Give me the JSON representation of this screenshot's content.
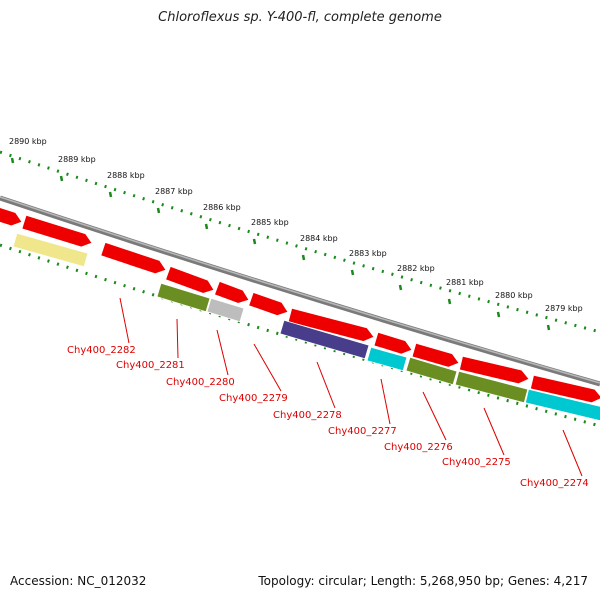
{
  "header": {
    "title": "Chloroflexus sp. Y-400-fl, complete genome"
  },
  "footer": {
    "accession": "Accession: NC_012032",
    "summary": "Topology: circular; Length: 5,268,950 bp; Genes: 4,217"
  },
  "scale": {
    "kbp_labels": [
      "2890 kbp",
      "2889 kbp",
      "2888 kbp",
      "2887 kbp",
      "2886 kbp",
      "2885 kbp",
      "2884 kbp",
      "2883 kbp",
      "2882 kbp",
      "2881 kbp",
      "2880 kbp",
      "2879 kbp"
    ]
  },
  "colors": {
    "backbone": "#7a7a7a",
    "gene_red": "#ee0000",
    "label_red": "#dd0000",
    "tick_green": "#1a8a1a",
    "yellow": "#f0e68c",
    "olive": "#6b8e23",
    "gray": "#bdbdbd",
    "purple": "#483d8b",
    "cyan": "#00c8d0"
  },
  "gene_labels": [
    "Chy400_2282",
    "Chy400_2281",
    "Chy400_2280",
    "Chy400_2279",
    "Chy400_2278",
    "Chy400_2277",
    "Chy400_2276",
    "Chy400_2275",
    "Chy400_2274"
  ]
}
